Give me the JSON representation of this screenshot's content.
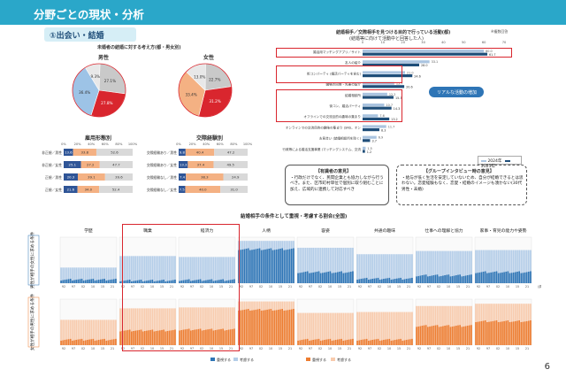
{
  "header": {
    "title": "分野ごとの現状・分析"
  },
  "section": {
    "label": "①出会い・結婚"
  },
  "pie": {
    "title": "未婚者の結婚に対する考え方(都・男女別)",
    "male_label": "男性",
    "female_label": "女性",
    "male": [
      {
        "label": "結婚願望なし/ 無にしたくなくても 良い",
        "value": "27.1%",
        "color": "#c9c9c9"
      },
      {
        "label": "結婚願望あり/ いずれ結婚できる",
        "value": "27.8%",
        "color": "#d9262e"
      },
      {
        "label": "結婚願望あり/ このままでは難しい",
        "value": "36.4%",
        "color": "#9dc3e6"
      },
      {
        "label": "結婚願望なし/ 難しい",
        "value": "9.3%",
        "color": "#e8e8e8"
      }
    ],
    "female": [
      {
        "label": "結婚願望なし/ 無にしたくなくても 良い",
        "value": "22.7%",
        "color": "#c9c9c9"
      },
      {
        "label": "結婚願望あり/ いずれ結婚できる",
        "value": "31.2%",
        "color": "#d9262e"
      },
      {
        "label": "結婚願望あり/ このままでは難しい",
        "value": "33.4%",
        "color": "#f4b183"
      },
      {
        "label": "結婚願望なし/ 難しい",
        "value": "13.0%",
        "color": "#e8e8e8"
      }
    ]
  },
  "employment": {
    "title": "雇用形態別",
    "rows": [
      {
        "label": "非正規／男性",
        "values": [
          13.6,
          33.8,
          52.6
        ]
      },
      {
        "label": "非正規／女性",
        "values": [
          25.1,
          27.2,
          47.7
        ]
      },
      {
        "label": "正規／男性",
        "values": [
          20.3,
          39.1,
          39.6
        ]
      },
      {
        "label": "正規／女性",
        "values": [
          21.6,
          34.0,
          52.4
        ]
      }
    ],
    "ticks": [
      "0%",
      "20%",
      "40%",
      "60%",
      "80%",
      "100%"
    ]
  },
  "interaction": {
    "title": "交際経験別",
    "rows": [
      {
        "label": "交際経験あり／男性",
        "values": [
          9.8,
          40.4,
          47.2
        ]
      },
      {
        "label": "交際経験あり／女性",
        "values": [
          13.3,
          37.4,
          49.5
        ]
      },
      {
        "label": "交際経験なし／男性",
        "values": [
          7.4,
          38.3,
          24.9
        ]
      },
      {
        "label": "交際経験なし／女性",
        "values": [
          7.5,
          40.0,
          31.0
        ]
      }
    ],
    "ticks": [
      "0%",
      "20%",
      "40%",
      "60%",
      "80%",
      "100%"
    ]
  },
  "activities": {
    "title": "結婚相手／交際相手を見つける目的で行っている活動(都)",
    "subtitle": "(結婚等に向けて活動中と回答した人)",
    "unit": "※複数回答",
    "legend": [
      "2024年",
      "2025年"
    ],
    "callout": "リアルな活動の増加",
    "items": [
      {
        "label": "婚活用マッチングアプリ／サイト",
        "v2024": "60.0",
        "v2025": "61.7"
      },
      {
        "label": "友人の紹介",
        "v2024": "33.1",
        "v2025": "28.0"
      },
      {
        "label": "街コンパーティ (婚活パーティを含む)",
        "v2024": "21.0",
        "v2025": "24.6"
      },
      {
        "label": "職場の同僚・先輩の紹介",
        "v2024": "15.7",
        "v2025": "20.6"
      },
      {
        "label": "結婚相談所",
        "v2024": "12.2",
        "v2025": "15.3"
      },
      {
        "label": "街コン、婚活パーティ",
        "v2024": "10.7",
        "v2025": "14.3"
      },
      {
        "label": "オフラインでの交流目的の趣味の集まり",
        "v2024": "7.6",
        "v2025": "13.2"
      },
      {
        "label": "オンラインでの交流目的の趣味の集まり (SNS、オンラインゲームなど)",
        "v2024": "11.7",
        "v2025": "8.3"
      },
      {
        "label": "お見合い (結婚相談所を除く)",
        "v2024": "6.9",
        "v2025": "3.7"
      },
      {
        "label": "行政等による婚活支援事業 (マッチングシステム、交流イベントなど)",
        "v2024": "1.5",
        "v2025": "1.2"
      }
    ]
  },
  "opinions": {
    "title": "【有識者の意見】",
    "text": "・行政だけでなく、民間企業とも協力しながら行うべき。また、区市町村単位で個別に取り組むことに加え、広域的に連携して対応すべき"
  },
  "interview": {
    "title": "【グループインタビュー時の意見】",
    "text": "・給与が低く生活を安定していないため、自分が結婚できるとは思わない。恋愛経験もなく、恋愛・結婚のイメージも湧かない(30代男性・未婚)"
  },
  "conditions": {
    "title": "結婚相手の条件として重視・考慮する割合(全国)",
    "row_labels": [
      "男性が相手の女性に求める条件",
      "女性が相手の男性に求める条件"
    ],
    "columns": [
      "学歴",
      "職業",
      "経済力",
      "人柄",
      "容姿",
      "共通の趣味",
      "仕事への理解と協力",
      "家事・育児の能力や姿勢"
    ],
    "years": [
      "92",
      "97",
      "02",
      "10",
      "15",
      "21"
    ],
    "legend_male": [
      "重視する",
      "考慮する"
    ],
    "legend_female": [
      "重視する",
      "考慮する"
    ],
    "source_note": "(調査年)"
  },
  "page_number": "6"
}
